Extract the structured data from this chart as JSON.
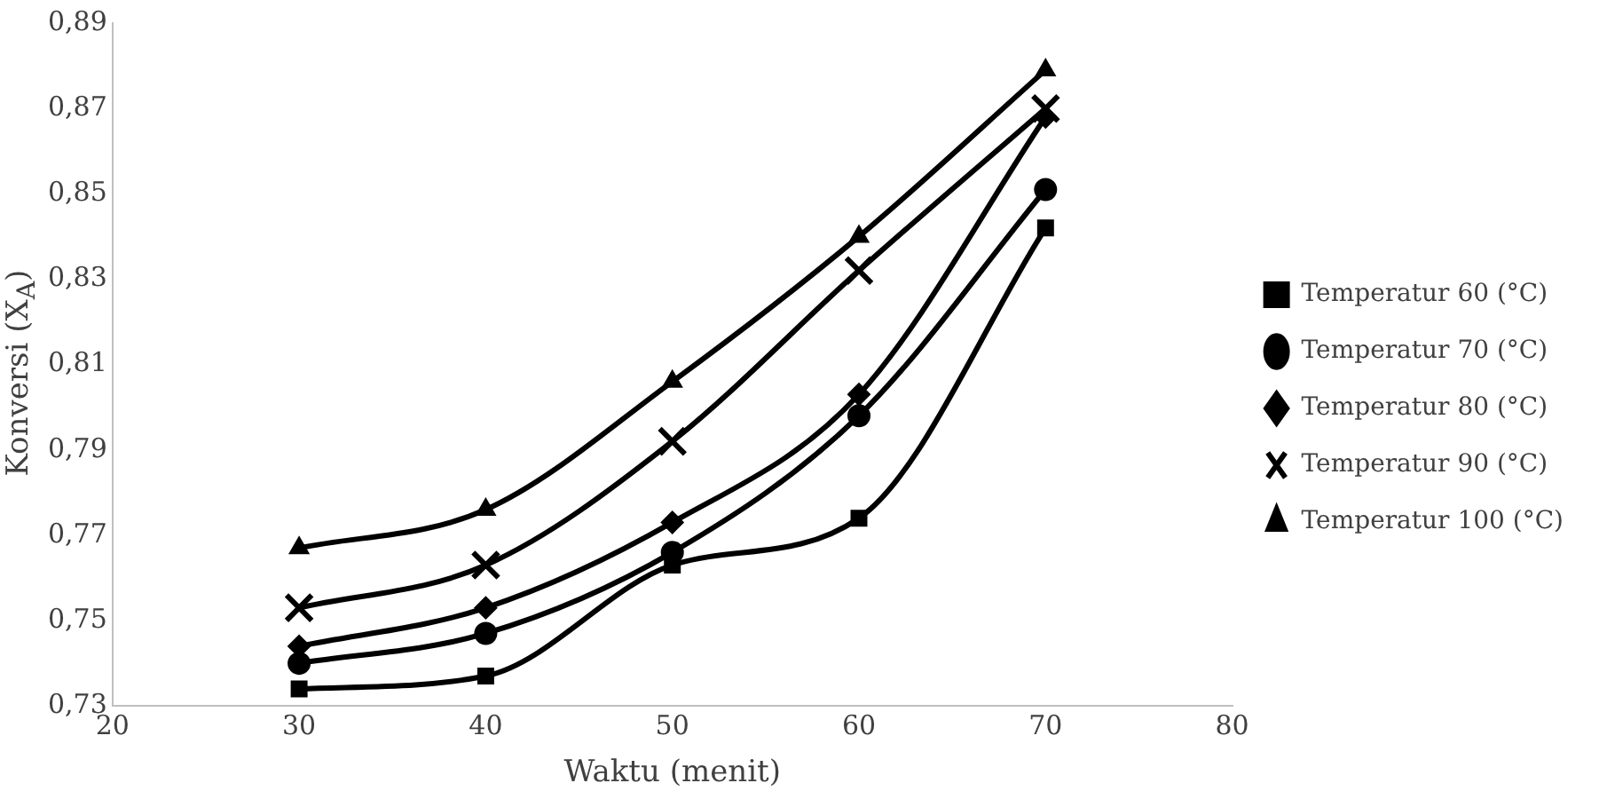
{
  "chart_data": {
    "type": "line",
    "xlabel": "Waktu (menit)",
    "ylabel": "Konversi (X$_{A}$)",
    "x": [
      30,
      40,
      50,
      60,
      70
    ],
    "xlim": [
      20,
      80
    ],
    "xticks": [
      20,
      30,
      40,
      50,
      60,
      70,
      80
    ],
    "ylim": [
      0.73,
      0.89
    ],
    "yticks": [
      {
        "value": 0.73,
        "label": "0,73"
      },
      {
        "value": 0.75,
        "label": "0,75"
      },
      {
        "value": 0.77,
        "label": "0,77"
      },
      {
        "value": 0.79,
        "label": "0,79"
      },
      {
        "value": 0.81,
        "label": "0,81"
      },
      {
        "value": 0.83,
        "label": "0,83"
      },
      {
        "value": 0.85,
        "label": "0,85"
      },
      {
        "value": 0.87,
        "label": "0,87"
      },
      {
        "value": 0.89,
        "label": "0,89"
      }
    ],
    "grid": false,
    "legend": "right",
    "line_style": "solid",
    "series": [
      {
        "name": "Temperatur 60 (°C)",
        "color": "#000000",
        "marker": "square",
        "values": [
          0.734,
          0.737,
          0.763,
          0.774,
          0.842
        ]
      },
      {
        "name": "Temperatur 70 (°C)",
        "color": "#000000",
        "marker": "circle",
        "values": [
          0.74,
          0.747,
          0.766,
          0.798,
          0.851
        ]
      },
      {
        "name": "Temperatur 80 (°C)",
        "color": "#000000",
        "marker": "diamond",
        "values": [
          0.744,
          0.753,
          0.773,
          0.803,
          0.868
        ]
      },
      {
        "name": "Temperatur 90 (°C)",
        "color": "#000000",
        "marker": "cross",
        "values": [
          0.753,
          0.763,
          0.792,
          0.832,
          0.87
        ]
      },
      {
        "name": "Temperatur 100 (°C)",
        "color": "#000000",
        "marker": "triangle",
        "values": [
          0.767,
          0.776,
          0.806,
          0.84,
          0.879
        ]
      }
    ]
  }
}
